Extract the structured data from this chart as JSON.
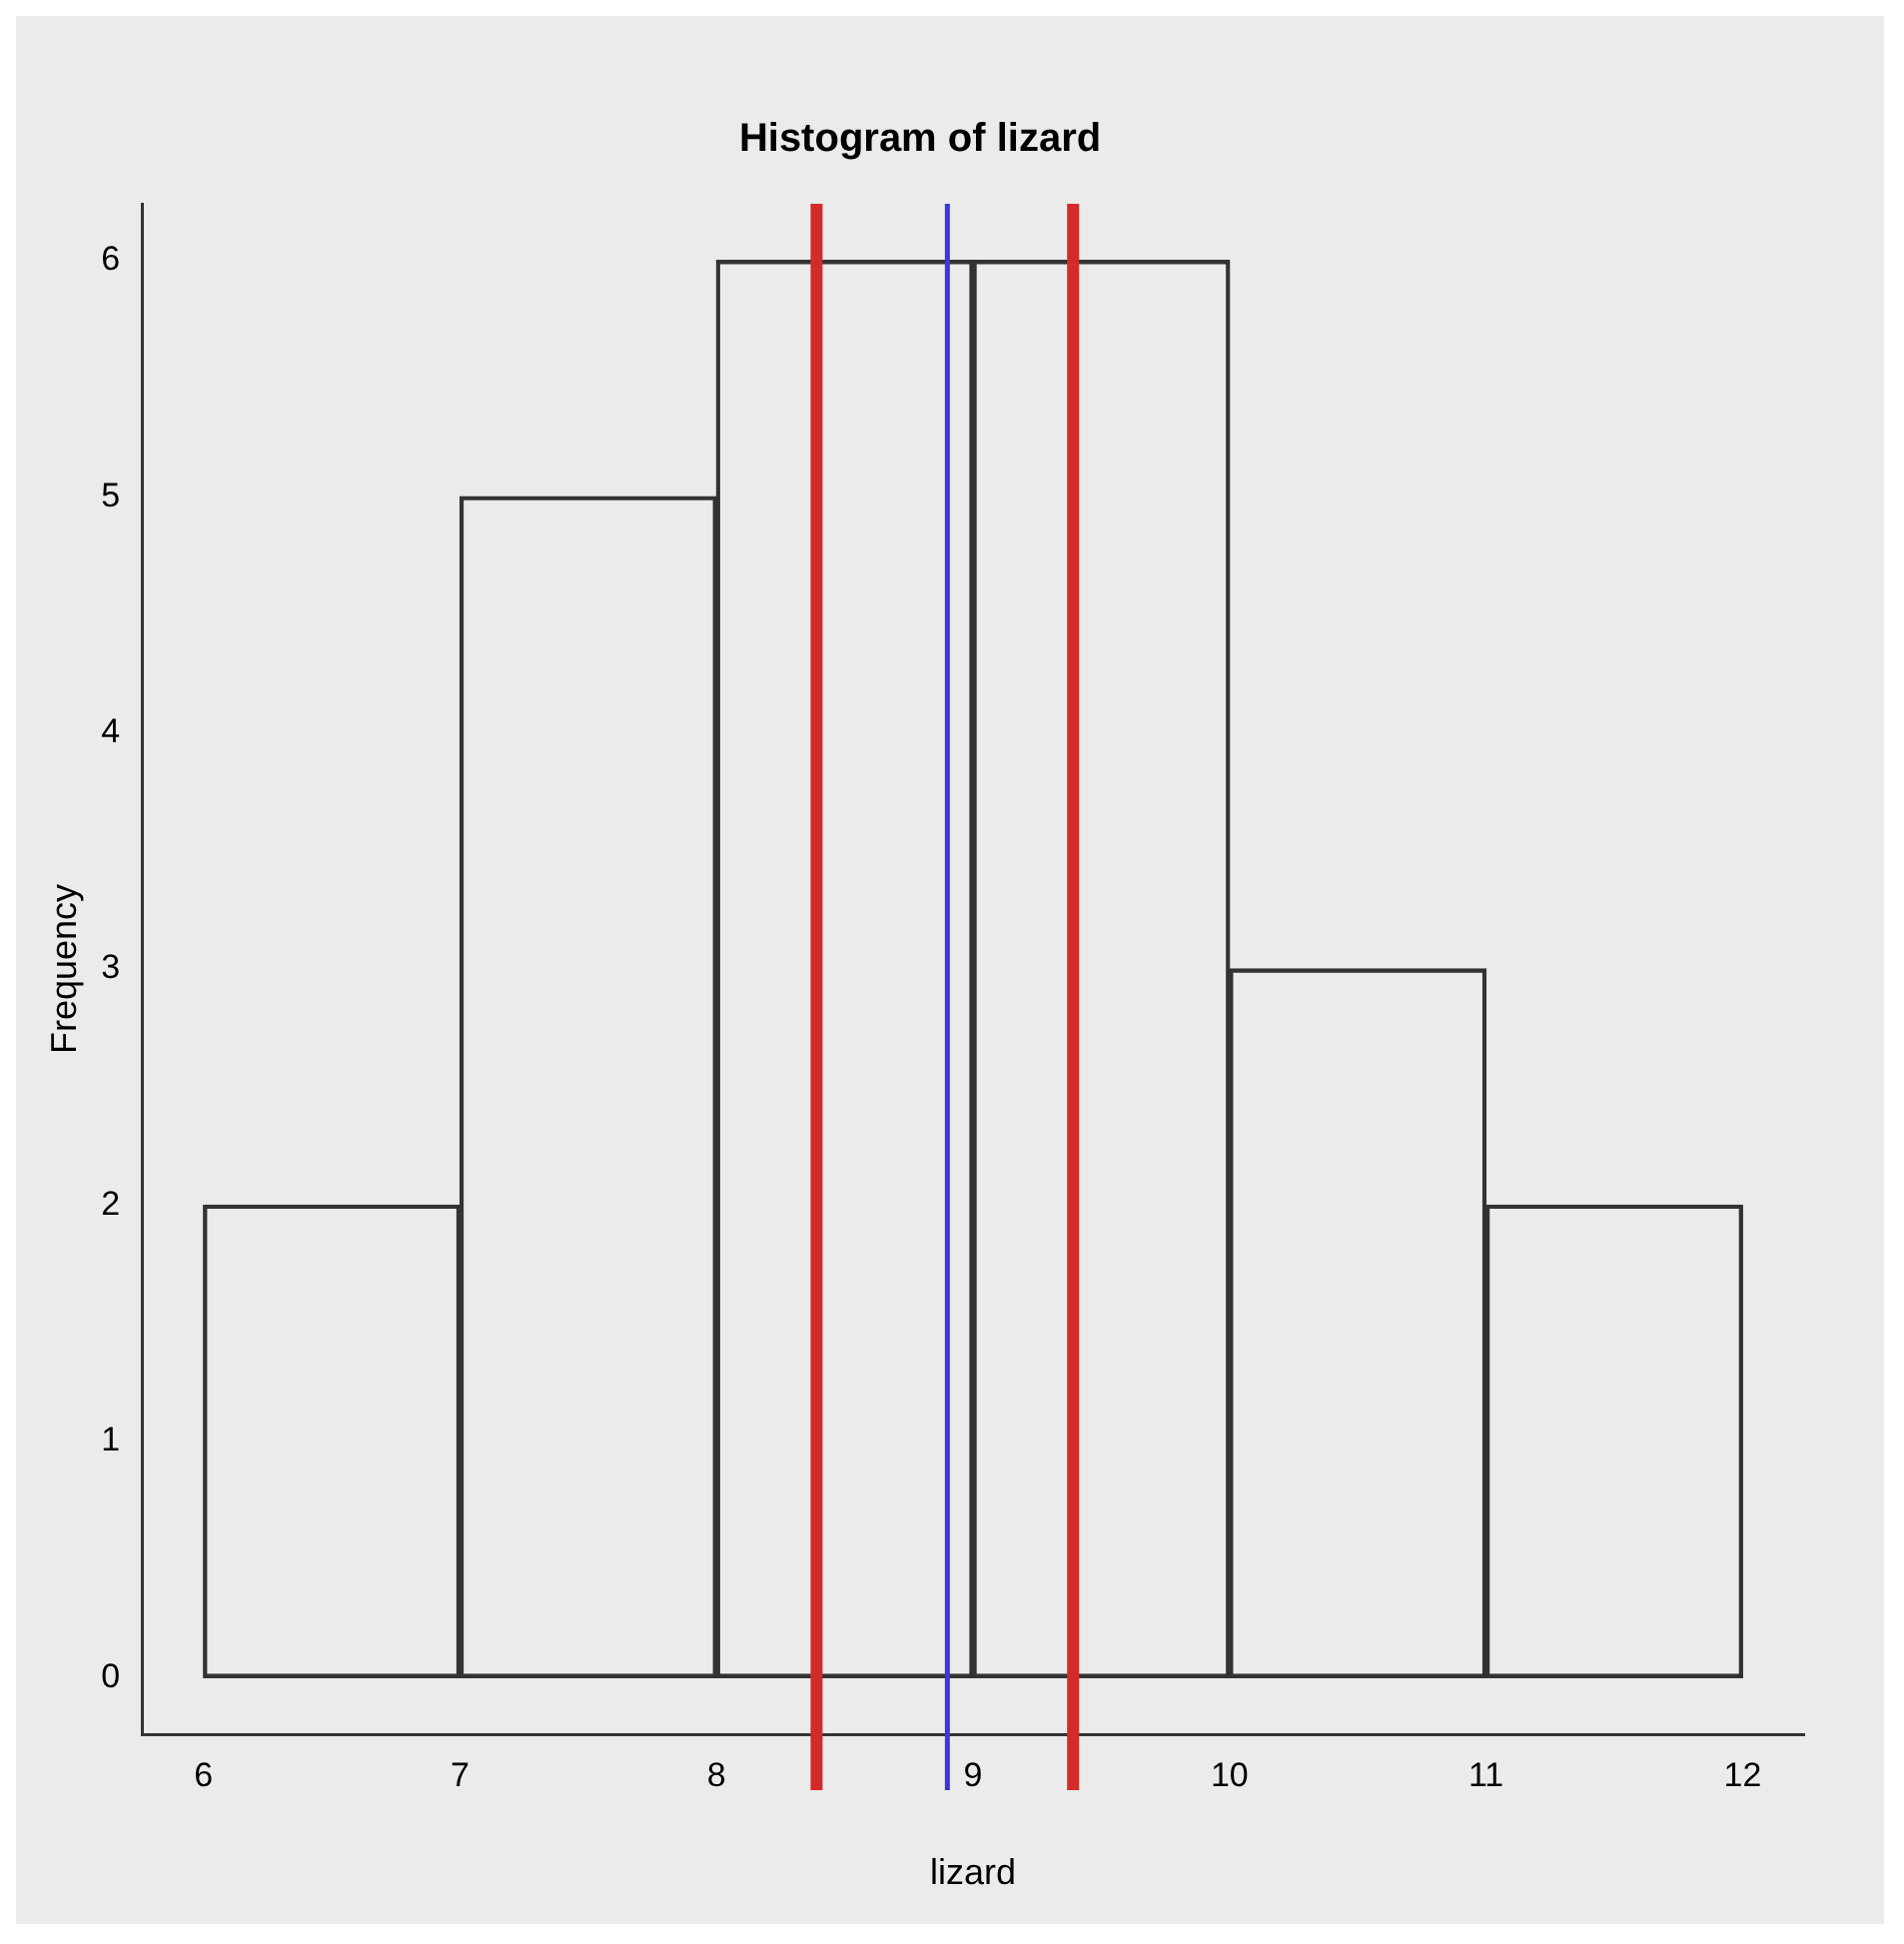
{
  "chart_data": {
    "type": "histogram",
    "title": "Histogram of lizard",
    "xlabel": "lizard",
    "ylabel": "Frequency",
    "bins": [
      6,
      7,
      8,
      9,
      10,
      11,
      12
    ],
    "values": [
      2,
      5,
      6,
      6,
      3,
      2
    ],
    "color": "#333333",
    "xlim": [
      5.76,
      12.24
    ],
    "xticks": [
      6,
      7,
      8,
      9,
      10,
      11,
      12
    ],
    "ylim": [
      -0.24,
      6.24
    ],
    "yticks": [
      0,
      1,
      2,
      3,
      4,
      5,
      6
    ],
    "grid": false,
    "legend": false,
    "ref_lines": [
      {
        "axis": "x",
        "value": 8.39,
        "color": "#d42a2a"
      },
      {
        "axis": "x",
        "value": 8.9,
        "color": "#3838e0"
      },
      {
        "axis": "x",
        "value": 9.39,
        "color": "#d42a2a"
      }
    ]
  }
}
